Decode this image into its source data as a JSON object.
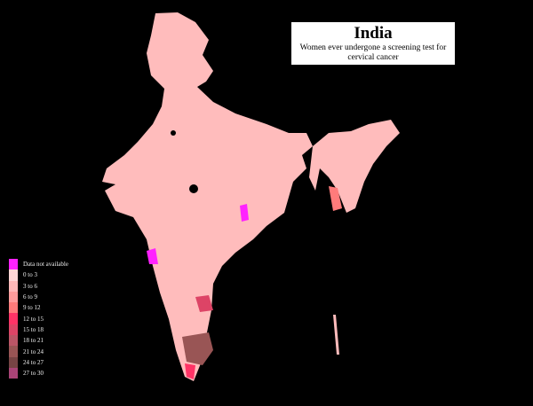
{
  "title": "India",
  "subtitle": "Women ever undergone a screening test for cervical cancer",
  "legend": [
    {
      "label": "Data not available",
      "color": "#ff22ff"
    },
    {
      "label": "0 to 3",
      "color": "#ffd5d5"
    },
    {
      "label": "3 to 6",
      "color": "#ffb8b8"
    },
    {
      "label": "6 to 9",
      "color": "#ff9c9c"
    },
    {
      "label": "9 to 12",
      "color": "#ff7b7b"
    },
    {
      "label": "12 to 15",
      "color": "#ff3366"
    },
    {
      "label": "15 to 18",
      "color": "#dd4466"
    },
    {
      "label": "18 to 21",
      "color": "#bb5566"
    },
    {
      "label": "21 to 24",
      "color": "#995555"
    },
    {
      "label": "24 to 27",
      "color": "#774444"
    },
    {
      "label": "27 to 30",
      "color": "#aa4477"
    }
  ],
  "colors": {
    "background": "#000000",
    "base_fill": "#ffbcbc"
  }
}
